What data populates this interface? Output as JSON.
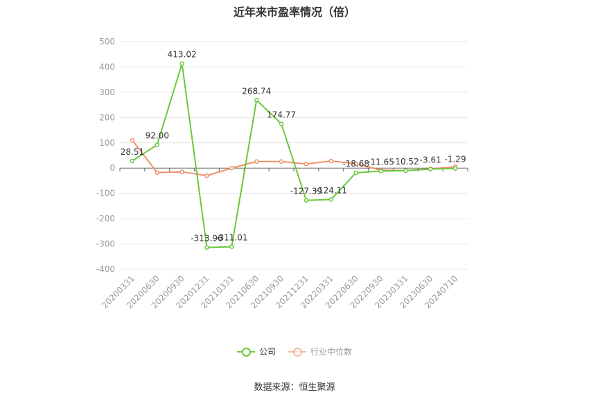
{
  "title": "近年来市盈率情况（倍）",
  "source": "数据来源：恒生聚源",
  "colors": {
    "company": "#6ac83a",
    "industry": "#f0916a",
    "grid": "#e6e6e6",
    "axis_text": "#999999"
  },
  "chart_data": {
    "type": "line",
    "title": "近年来市盈率情况（倍）",
    "categories": [
      "20200331",
      "20200630",
      "20200930",
      "20201231",
      "20210331",
      "20210630",
      "20210930",
      "20211231",
      "20220331",
      "20220630",
      "20220930",
      "20230331",
      "20230630",
      "20240710"
    ],
    "ylim": [
      -400,
      500
    ],
    "yticks": [
      -400,
      -300,
      -200,
      -100,
      0,
      100,
      200,
      300,
      400,
      500
    ],
    "grid": true,
    "legend": "bottom",
    "series": [
      {
        "name": "公司",
        "color": "#6ac83a",
        "values": [
          28.51,
          92.0,
          413.02,
          -313.96,
          -311.01,
          268.74,
          174.77,
          -127.39,
          -124.11,
          -18.68,
          -11.65,
          -10.52,
          -3.61,
          -1.29
        ],
        "labels": [
          "28.51",
          "92.00",
          "413.02",
          "-313.96",
          "-311.01",
          "268.74",
          "174.77",
          "-127.39",
          "-124.11",
          "-18.68",
          "-11.65",
          "-10.52",
          "-3.61",
          "-1.29"
        ]
      },
      {
        "name": "行业中位数",
        "color": "#f0916a",
        "values": [
          110,
          -18,
          -15,
          -30,
          0,
          26,
          26,
          16,
          28,
          17,
          -8,
          -10,
          -3,
          5
        ]
      }
    ]
  }
}
